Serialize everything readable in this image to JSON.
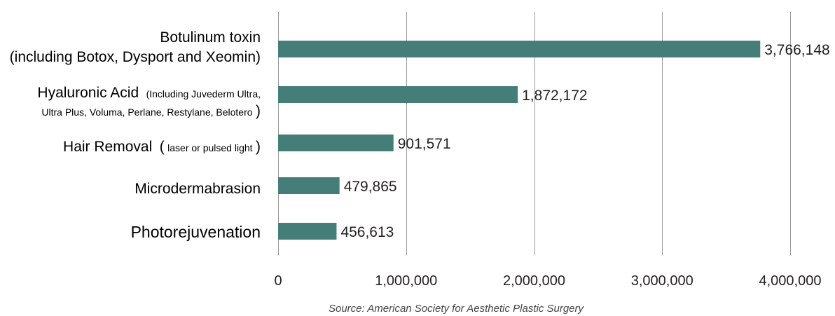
{
  "chart_data": {
    "type": "bar",
    "orientation": "horizontal",
    "categories": [
      {
        "main": "Botulinum toxin",
        "line2": "(including Botox, Dysport and Xeomin)"
      },
      {
        "main": "Hyaluronic Acid",
        "sub1": "(Including Juvederm Ultra,",
        "sub2": "Ultra Plus, Voluma, Perlane, Restylane, Belotero",
        "close": ")"
      },
      {
        "main": "Hair Removal",
        "open": "(",
        "sub1": "laser or pulsed light",
        "close": ")"
      },
      {
        "main": "Microdermabrasion"
      },
      {
        "main": "Photorejuvenation"
      }
    ],
    "values": [
      3766148,
      1872172,
      901571,
      479865,
      456613
    ],
    "value_labels": [
      "3,766,148",
      "1,872,172",
      "901,571",
      "479,865",
      "456,613"
    ],
    "xlim": [
      0,
      4000000
    ],
    "ticks": [
      0,
      1000000,
      2000000,
      3000000,
      4000000
    ],
    "tick_labels": [
      "0",
      "1,000,000",
      "2,000,000",
      "3,000,000",
      "4,000,000"
    ],
    "grid": "vertical",
    "bar_color": "#457d78",
    "source": "Source: American Society for Aesthetic Plastic Surgery"
  }
}
